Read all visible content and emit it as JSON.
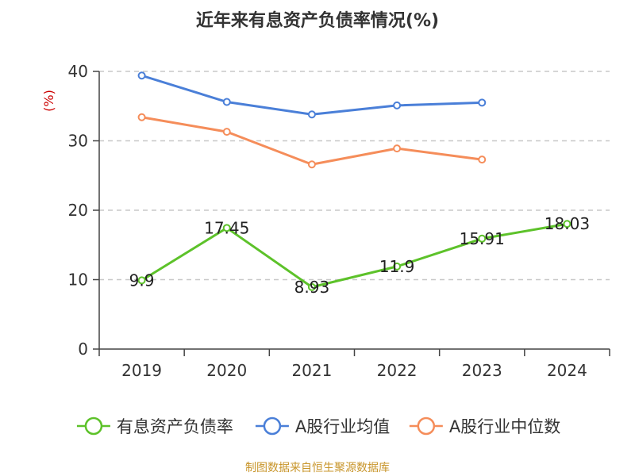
{
  "chart_data": {
    "type": "line",
    "title": "近年来有息资产负债率情况(%)",
    "ylabel": "(%)",
    "categories": [
      "2019",
      "2020",
      "2021",
      "2022",
      "2023",
      "2024"
    ],
    "ylim": [
      0,
      40
    ],
    "yticks": [
      0,
      10,
      20,
      30,
      40
    ],
    "grid": true,
    "legend_position": "bottom",
    "series": [
      {
        "name": "有息资产负债率",
        "color": "#5dc22a",
        "values": [
          9.9,
          17.45,
          8.93,
          11.9,
          15.91,
          18.03
        ],
        "labels": [
          "9.9",
          "17.45",
          "8.93",
          "11.9",
          "15.91",
          "18.03"
        ]
      },
      {
        "name": "A股行业均值",
        "color": "#4a7fd8",
        "values": [
          39.4,
          35.6,
          33.8,
          35.1,
          35.5,
          null
        ]
      },
      {
        "name": "A股行业中位数",
        "color": "#f58d5a",
        "values": [
          33.4,
          31.3,
          26.6,
          28.9,
          27.3,
          null
        ]
      }
    ],
    "source": "制图数据来自恒生聚源数据库"
  }
}
